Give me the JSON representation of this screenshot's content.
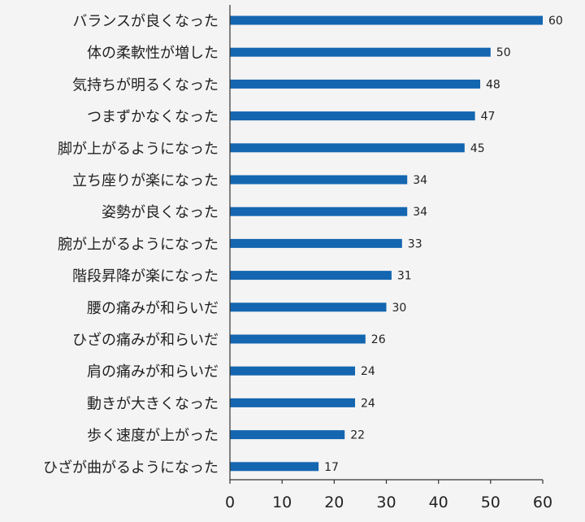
{
  "chart_data": {
    "type": "bar",
    "orientation": "horizontal",
    "categories": [
      "バランスが良くなった",
      "体の柔軟性が増した",
      "気持ちが明るくなった",
      "つまずかなくなった",
      "脚が上がるようになった",
      "立ち座りが楽になった",
      "姿勢が良くなった",
      "腕が上がるようになった",
      "階段昇降が楽になった",
      "腰の痛みが和らいだ",
      "ひざの痛みが和らいだ",
      "肩の痛みが和らいだ",
      "動きが大きくなった",
      "歩く速度が上がった",
      "ひざが曲がるようになった"
    ],
    "values": [
      60,
      50,
      48,
      47,
      45,
      34,
      34,
      33,
      31,
      30,
      26,
      24,
      24,
      22,
      17
    ],
    "xlim": [
      0,
      60
    ],
    "xticks": [
      0,
      10,
      20,
      30,
      40,
      50,
      60
    ],
    "bar_color": "#1466b0",
    "grid": false
  }
}
